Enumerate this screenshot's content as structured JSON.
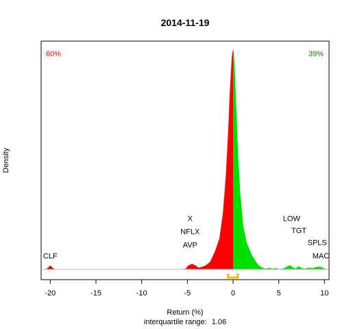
{
  "chart_data": {
    "type": "area",
    "title": "2014-11-19",
    "xlabel": "Return (%)",
    "ylabel": "Density",
    "subtitle_prefix": "interquartile range:",
    "iqr_value": "1.06",
    "iqr_range": [
      -0.55,
      0.51
    ],
    "xlim": [
      -21,
      10.5
    ],
    "ylim": [
      0,
      1
    ],
    "x_ticks": [
      -20,
      -15,
      -10,
      -5,
      0,
      5,
      10
    ],
    "x_tick_labels": [
      "-20",
      "-15",
      "-10",
      "-5",
      "0",
      "5",
      "10"
    ],
    "grid": false,
    "legend": "none",
    "colors": {
      "negative": "#ff0000",
      "positive": "#00e000",
      "iqr": "#f0c000",
      "baseline": "#bebebe"
    },
    "pct_negative": "60%",
    "pct_positive": "39%",
    "density": [
      [
        -21,
        0.0
      ],
      [
        -20.6,
        0.0
      ],
      [
        -20.3,
        0.006
      ],
      [
        -20.0,
        0.018
      ],
      [
        -19.7,
        0.006
      ],
      [
        -19.4,
        0.0
      ],
      [
        -6.0,
        0.0
      ],
      [
        -5.2,
        0.003
      ],
      [
        -4.9,
        0.018
      ],
      [
        -4.5,
        0.025
      ],
      [
        -4.1,
        0.018
      ],
      [
        -3.8,
        0.008
      ],
      [
        -3.5,
        0.01
      ],
      [
        -3.0,
        0.018
      ],
      [
        -2.5,
        0.035
      ],
      [
        -2.0,
        0.08
      ],
      [
        -1.5,
        0.14
      ],
      [
        -1.1,
        0.26
      ],
      [
        -0.8,
        0.42
      ],
      [
        -0.55,
        0.62
      ],
      [
        -0.35,
        0.81
      ],
      [
        -0.15,
        0.96
      ],
      [
        -0.05,
        0.99
      ],
      [
        0.05,
        1.0
      ],
      [
        0.15,
        0.94
      ],
      [
        0.35,
        0.74
      ],
      [
        0.55,
        0.52
      ],
      [
        0.8,
        0.34
      ],
      [
        1.1,
        0.2
      ],
      [
        1.5,
        0.12
      ],
      [
        2.0,
        0.07
      ],
      [
        2.5,
        0.035
      ],
      [
        2.8,
        0.018
      ],
      [
        3.2,
        0.008
      ],
      [
        3.5,
        0.003
      ],
      [
        4.0,
        0.007
      ],
      [
        4.3,
        0.003
      ],
      [
        4.7,
        0.006
      ],
      [
        5.0,
        0.002
      ],
      [
        5.5,
        0.004
      ],
      [
        5.9,
        0.012
      ],
      [
        6.2,
        0.02
      ],
      [
        6.5,
        0.01
      ],
      [
        6.8,
        0.004
      ],
      [
        7.2,
        0.014
      ],
      [
        7.5,
        0.006
      ],
      [
        7.9,
        0.003
      ],
      [
        8.3,
        0.008
      ],
      [
        8.7,
        0.005
      ],
      [
        9.0,
        0.01
      ],
      [
        9.5,
        0.012
      ],
      [
        10.0,
        0.004
      ],
      [
        10.5,
        0.0
      ]
    ],
    "annotations": [
      {
        "label": "CLF",
        "x": -20.0,
        "y": 0.05
      },
      {
        "label": "AVP",
        "x": -4.7,
        "y": 0.1
      },
      {
        "label": "NFLX",
        "x": -4.7,
        "y": 0.16
      },
      {
        "label": "X",
        "x": -4.7,
        "y": 0.22
      },
      {
        "label": "MAC",
        "x": 9.6,
        "y": 0.05
      },
      {
        "label": "SPLS",
        "x": 9.2,
        "y": 0.11
      },
      {
        "label": "TGT",
        "x": 7.2,
        "y": 0.165
      },
      {
        "label": "LOW",
        "x": 6.4,
        "y": 0.22
      }
    ]
  }
}
